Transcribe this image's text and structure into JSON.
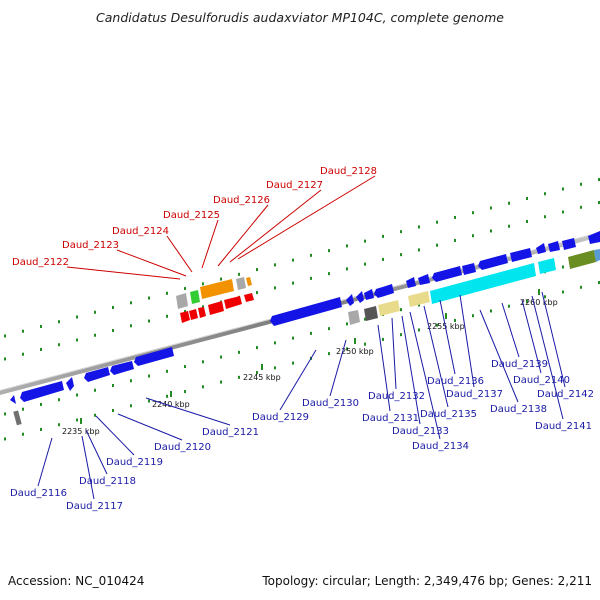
{
  "title": "Candidatus Desulforudis audaxviator MP104C, complete genome",
  "footer": {
    "accession": "Accession: NC_010424",
    "topology": "Topology: circular; Length: 2,349,476 bp; Genes: 2,211"
  },
  "scale_labels": [
    "2235 kbp",
    "2240 kbp",
    "2245 kbp",
    "2250 kbp",
    "2255 kbp",
    "2260 kbp"
  ],
  "red_labels": [
    "Daud_2122",
    "Daud_2123",
    "Daud_2124",
    "Daud_2125",
    "Daud_2126",
    "Daud_2127",
    "Daud_2128"
  ],
  "blue_labels": [
    "Daud_2116",
    "Daud_2117",
    "Daud_2118",
    "Daud_2119",
    "Daud_2120",
    "Daud_2121",
    "Daud_2129",
    "Daud_2130",
    "Daud_2131",
    "Daud_2132",
    "Daud_2133",
    "Daud_2134",
    "Daud_2135",
    "Daud_2136",
    "Daud_2137",
    "Daud_2138",
    "Daud_2139",
    "Daud_2140",
    "Daud_2141",
    "Daud_2142"
  ],
  "colors": {
    "axis": "#8c8c8c",
    "track_dots": "#228b22",
    "red_label": "#cc0000",
    "blue_label": "#1a1aa6",
    "gene_blue": "#1414e6",
    "gene_red": "#ee0000",
    "gene_orange": "#f39200",
    "gene_green": "#33cc33",
    "gene_cyan": "#00e5ee",
    "gene_khaki": "#e8dc8c",
    "gene_olive": "#6b8e23",
    "gene_grey": "#a8a8a8"
  }
}
